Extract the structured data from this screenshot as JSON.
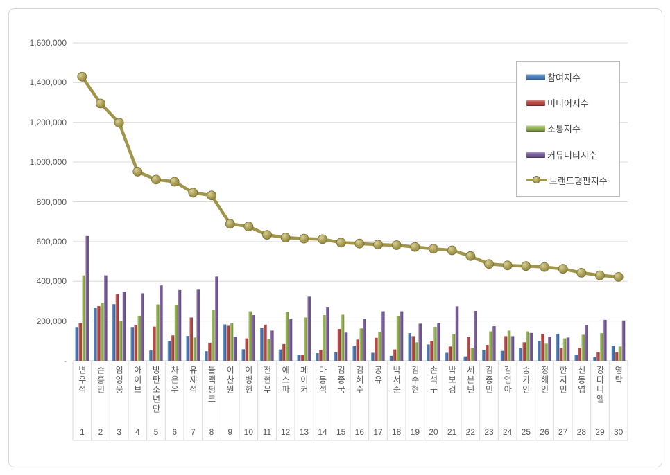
{
  "chart_data": {
    "type": "bar",
    "subtype": "grouped-bars-with-line-overlay",
    "title": "",
    "categories": [
      "변우석",
      "손흥민",
      "임영웅",
      "아이브",
      "방탄소년단",
      "차은우",
      "유재석",
      "블랙핑크",
      "이찬원",
      "이병헌",
      "전현무",
      "에스파",
      "페이커",
      "마동석",
      "김종국",
      "김혜수",
      "공유",
      "박서준",
      "김수현",
      "손석구",
      "박보검",
      "세븐틴",
      "김종민",
      "김연아",
      "송가인",
      "정해인",
      "한지민",
      "신동엽",
      "강다니엘",
      "영탁"
    ],
    "ranks": [
      "1",
      "2",
      "3",
      "4",
      "5",
      "6",
      "7",
      "8",
      "9",
      "10",
      "11",
      "12",
      "13",
      "14",
      "15",
      "16",
      "17",
      "18",
      "19",
      "20",
      "21",
      "22",
      "23",
      "24",
      "25",
      "26",
      "27",
      "28",
      "29",
      "30"
    ],
    "series": [
      {
        "key": "participation",
        "name": "참여지수",
        "type": "bar",
        "color": "#4A7EBB",
        "values": [
          170000,
          265000,
          285000,
          170000,
          52000,
          100000,
          125000,
          48000,
          183000,
          58000,
          167000,
          57000,
          30000,
          38000,
          42000,
          76000,
          40000,
          25000,
          139000,
          82000,
          40000,
          22000,
          55000,
          50000,
          66000,
          101000,
          136000,
          31000,
          18000,
          76000
        ]
      },
      {
        "key": "media",
        "name": "미디어지수",
        "type": "bar",
        "color": "#BE4B48",
        "values": [
          190000,
          275000,
          337000,
          181000,
          172000,
          128000,
          218000,
          91000,
          176000,
          113000,
          182000,
          84000,
          30000,
          55000,
          160000,
          107000,
          116000,
          57000,
          124000,
          101000,
          72000,
          119000,
          80000,
          124000,
          93000,
          135000,
          65000,
          66000,
          43000,
          43000
        ]
      },
      {
        "key": "communication",
        "name": "소통지수",
        "type": "bar",
        "color": "#98B855",
        "values": [
          430000,
          290000,
          200000,
          227000,
          284000,
          282000,
          117000,
          255000,
          189000,
          249000,
          110000,
          247000,
          218000,
          230000,
          232000,
          163000,
          146000,
          226000,
          93000,
          171000,
          136000,
          66000,
          148000,
          152000,
          148000,
          86000,
          113000,
          131000,
          139000,
          72000
        ]
      },
      {
        "key": "community",
        "name": "커뮤니티지수",
        "type": "bar",
        "color": "#7D60A0",
        "values": [
          628000,
          430000,
          346000,
          340000,
          379000,
          356000,
          358000,
          424000,
          121000,
          230000,
          152000,
          209000,
          323000,
          268000,
          142000,
          210000,
          249000,
          249000,
          187000,
          189000,
          274000,
          251000,
          174000,
          124000,
          140000,
          119000,
          117000,
          180000,
          206000,
          203000
        ]
      },
      {
        "key": "reputation",
        "name": "브랜드평판지수",
        "type": "line",
        "color": "#A1954B",
        "values": [
          1430000,
          1295000,
          1198000,
          952000,
          912000,
          901000,
          846000,
          832000,
          689000,
          676000,
          634000,
          620000,
          615000,
          612000,
          595000,
          590000,
          585000,
          582000,
          573000,
          564000,
          556000,
          527000,
          487000,
          480000,
          477000,
          472000,
          463000,
          443000,
          430000,
          422000
        ]
      }
    ],
    "y_axis": {
      "min": 0,
      "max": 1600000,
      "step": 200000,
      "tick_labels": [
        "1,600,000",
        "1,400,000",
        "1,200,000",
        "1,000,000",
        "800,000",
        "600,000",
        "400,000",
        "200,000",
        "-"
      ]
    },
    "grid": true,
    "legend_position": "top-right-overlay",
    "colors": {
      "grid": "#d9d9d9",
      "axis_text": "#595959",
      "legend_border": "#bdbdbd",
      "marker_stroke": "#7a7135"
    }
  }
}
